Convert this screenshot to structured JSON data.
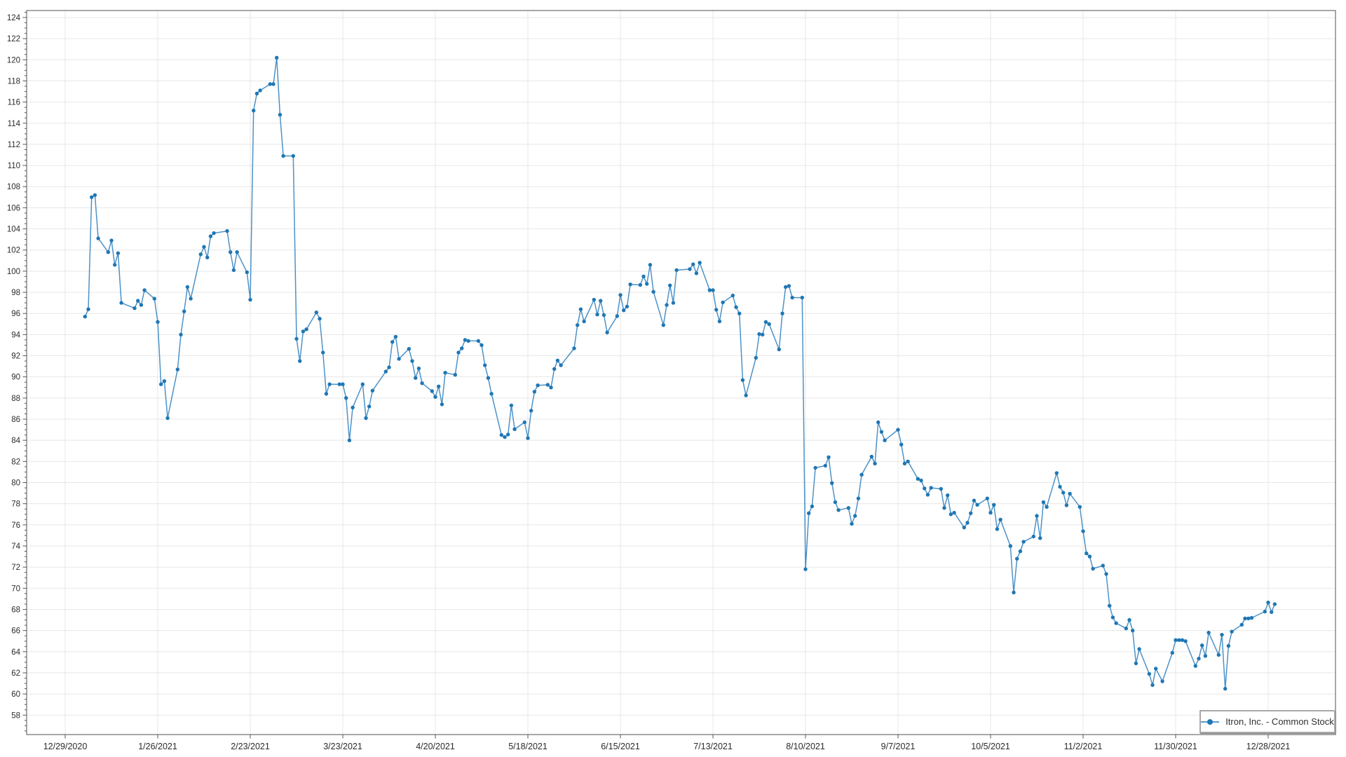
{
  "legend": {
    "label": "Itron, Inc. - Common Stock"
  },
  "axes": {
    "y_ticks": [
      58,
      60,
      62,
      64,
      66,
      68,
      70,
      72,
      74,
      76,
      78,
      80,
      82,
      84,
      86,
      88,
      90,
      92,
      94,
      96,
      98,
      100,
      102,
      104,
      106,
      108,
      110,
      112,
      114,
      116,
      118,
      120,
      122,
      124
    ],
    "y_minor_step": 0.5,
    "x_ticks": [
      "12/29/2020",
      "1/26/2021",
      "2/23/2021",
      "3/23/2021",
      "4/20/2021",
      "5/18/2021",
      "6/15/2021",
      "7/13/2021",
      "8/10/2021",
      "9/7/2021",
      "10/5/2021",
      "11/2/2021",
      "11/30/2021",
      "12/28/2021"
    ]
  },
  "colors": {
    "line": "#2e7fbe",
    "marker": "#1f77b4",
    "grid": "#e7e7e7",
    "border": "#6e6e6e",
    "tick": "#565656",
    "label": "#2b2b2b"
  },
  "chart_data": {
    "type": "line",
    "title": "",
    "xlabel": "",
    "ylabel": "",
    "series_name": "Itron, Inc. - Common Stock",
    "x_epoch": "12/29/2020",
    "ylim_labels": [
      58,
      124
    ],
    "ylim_plot": [
      56.16,
      124.66
    ],
    "legend_position": "bottom-right",
    "grid": true,
    "markers": true,
    "dates": [
      "1/4/2021",
      "1/5/2021",
      "1/6/2021",
      "1/7/2021",
      "1/8/2021",
      "1/11/2021",
      "1/12/2021",
      "1/13/2021",
      "1/14/2021",
      "1/15/2021",
      "1/19/2021",
      "1/20/2021",
      "1/21/2021",
      "1/22/2021",
      "1/25/2021",
      "1/26/2021",
      "1/27/2021",
      "1/28/2021",
      "1/29/2021",
      "2/1/2021",
      "2/2/2021",
      "2/3/2021",
      "2/4/2021",
      "2/5/2021",
      "2/8/2021",
      "2/9/2021",
      "2/10/2021",
      "2/11/2021",
      "2/12/2021",
      "2/16/2021",
      "2/17/2021",
      "2/18/2021",
      "2/19/2021",
      "2/22/2021",
      "2/23/2021",
      "2/24/2021",
      "2/25/2021",
      "2/26/2021",
      "3/1/2021",
      "3/2/2021",
      "3/3/2021",
      "3/4/2021",
      "3/5/2021",
      "3/8/2021",
      "3/9/2021",
      "3/10/2021",
      "3/11/2021",
      "3/12/2021",
      "3/15/2021",
      "3/16/2021",
      "3/17/2021",
      "3/18/2021",
      "3/19/2021",
      "3/22/2021",
      "3/23/2021",
      "3/24/2021",
      "3/25/2021",
      "3/26/2021",
      "3/29/2021",
      "3/30/2021",
      "3/31/2021",
      "4/1/2021",
      "4/5/2021",
      "4/6/2021",
      "4/7/2021",
      "4/8/2021",
      "4/9/2021",
      "4/12/2021",
      "4/13/2021",
      "4/14/2021",
      "4/15/2021",
      "4/16/2021",
      "4/19/2021",
      "4/20/2021",
      "4/21/2021",
      "4/22/2021",
      "4/23/2021",
      "4/26/2021",
      "4/27/2021",
      "4/28/2021",
      "4/29/2021",
      "4/30/2021",
      "5/3/2021",
      "5/4/2021",
      "5/5/2021",
      "5/6/2021",
      "5/7/2021",
      "5/10/2021",
      "5/11/2021",
      "5/12/2021",
      "5/13/2021",
      "5/14/2021",
      "5/17/2021",
      "5/18/2021",
      "5/19/2021",
      "5/20/2021",
      "5/21/2021",
      "5/24/2021",
      "5/25/2021",
      "5/26/2021",
      "5/27/2021",
      "5/28/2021",
      "6/1/2021",
      "6/2/2021",
      "6/3/2021",
      "6/4/2021",
      "6/7/2021",
      "6/8/2021",
      "6/9/2021",
      "6/10/2021",
      "6/11/2021",
      "6/14/2021",
      "6/15/2021",
      "6/16/2021",
      "6/17/2021",
      "6/18/2021",
      "6/21/2021",
      "6/22/2021",
      "6/23/2021",
      "6/24/2021",
      "6/25/2021",
      "6/28/2021",
      "6/29/2021",
      "6/30/2021",
      "7/1/2021",
      "7/2/2021",
      "7/6/2021",
      "7/7/2021",
      "7/8/2021",
      "7/9/2021",
      "7/12/2021",
      "7/13/2021",
      "7/14/2021",
      "7/15/2021",
      "7/16/2021",
      "7/19/2021",
      "7/20/2021",
      "7/21/2021",
      "7/22/2021",
      "7/23/2021",
      "7/26/2021",
      "7/27/2021",
      "7/28/2021",
      "7/29/2021",
      "7/30/2021",
      "8/2/2021",
      "8/3/2021",
      "8/4/2021",
      "8/5/2021",
      "8/6/2021",
      "8/9/2021",
      "8/10/2021",
      "8/11/2021",
      "8/12/2021",
      "8/13/2021",
      "8/16/2021",
      "8/17/2021",
      "8/18/2021",
      "8/19/2021",
      "8/20/2021",
      "8/23/2021",
      "8/24/2021",
      "8/25/2021",
      "8/26/2021",
      "8/27/2021",
      "8/30/2021",
      "8/31/2021",
      "9/1/2021",
      "9/2/2021",
      "9/3/2021",
      "9/7/2021",
      "9/8/2021",
      "9/9/2021",
      "9/10/2021",
      "9/13/2021",
      "9/14/2021",
      "9/15/2021",
      "9/16/2021",
      "9/17/2021",
      "9/20/2021",
      "9/21/2021",
      "9/22/2021",
      "9/23/2021",
      "9/24/2021",
      "9/27/2021",
      "9/28/2021",
      "9/29/2021",
      "9/30/2021",
      "10/1/2021",
      "10/4/2021",
      "10/5/2021",
      "10/6/2021",
      "10/7/2021",
      "10/8/2021",
      "10/11/2021",
      "10/12/2021",
      "10/13/2021",
      "10/14/2021",
      "10/15/2021",
      "10/18/2021",
      "10/19/2021",
      "10/20/2021",
      "10/21/2021",
      "10/22/2021",
      "10/25/2021",
      "10/26/2021",
      "10/27/2021",
      "10/28/2021",
      "10/29/2021",
      "11/1/2021",
      "11/2/2021",
      "11/3/2021",
      "11/4/2021",
      "11/5/2021",
      "11/8/2021",
      "11/9/2021",
      "11/10/2021",
      "11/11/2021",
      "11/12/2021",
      "11/15/2021",
      "11/16/2021",
      "11/17/2021",
      "11/18/2021",
      "11/19/2021",
      "11/22/2021",
      "11/23/2021",
      "11/24/2021",
      "11/26/2021",
      "11/29/2021",
      "11/30/2021",
      "12/1/2021",
      "12/2/2021",
      "12/3/2021",
      "12/6/2021",
      "12/7/2021",
      "12/8/2021",
      "12/9/2021",
      "12/10/2021",
      "12/13/2021",
      "12/14/2021",
      "12/15/2021",
      "12/16/2021",
      "12/17/2021",
      "12/20/2021",
      "12/21/2021",
      "12/22/2021",
      "12/23/2021",
      "12/27/2021",
      "12/28/2021",
      "12/29/2021",
      "12/30/2021"
    ],
    "closes": [
      95.7,
      96.4,
      107.0,
      107.2,
      103.1,
      101.8,
      102.9,
      100.6,
      101.7,
      97.0,
      96.5,
      97.2,
      96.8,
      98.2,
      97.4,
      95.2,
      89.3,
      89.6,
      86.1,
      90.7,
      94.0,
      96.2,
      98.5,
      97.4,
      101.6,
      102.3,
      101.3,
      103.3,
      103.6,
      103.8,
      101.8,
      100.1,
      101.8,
      99.9,
      97.3,
      115.2,
      116.8,
      117.1,
      117.7,
      117.7,
      120.2,
      114.8,
      110.9,
      110.9,
      93.6,
      91.5,
      94.3,
      94.5,
      96.1,
      95.5,
      92.3,
      88.4,
      89.3,
      89.3,
      89.3,
      88.0,
      84.0,
      87.1,
      89.3,
      86.1,
      87.2,
      88.7,
      90.5,
      90.9,
      93.3,
      93.8,
      91.7,
      92.65,
      91.5,
      89.9,
      90.8,
      89.4,
      88.65,
      88.1,
      89.1,
      87.4,
      90.4,
      90.2,
      92.3,
      92.7,
      93.5,
      93.4,
      93.4,
      93.0,
      91.1,
      89.9,
      88.4,
      84.5,
      84.3,
      84.55,
      87.3,
      85.05,
      85.7,
      84.2,
      86.8,
      88.6,
      89.2,
      89.25,
      89.0,
      90.75,
      91.55,
      91.1,
      92.7,
      94.9,
      96.4,
      95.25,
      97.3,
      95.9,
      97.2,
      95.85,
      94.2,
      95.75,
      97.75,
      96.3,
      96.65,
      98.75,
      98.7,
      99.5,
      98.8,
      100.6,
      98.05,
      94.9,
      96.8,
      98.65,
      97.0,
      100.1,
      100.2,
      100.65,
      99.8,
      100.8,
      98.2,
      98.2,
      96.35,
      95.25,
      97.05,
      97.7,
      96.6,
      96.0,
      89.7,
      88.25,
      91.8,
      94.05,
      94.0,
      95.2,
      95.0,
      92.6,
      96.0,
      98.5,
      98.6,
      97.5,
      97.5,
      71.8,
      77.1,
      77.75,
      81.4,
      81.6,
      82.4,
      79.95,
      78.15,
      77.4,
      77.6,
      76.1,
      76.85,
      78.5,
      80.75,
      82.45,
      81.8,
      85.7,
      84.8,
      84.0,
      85.0,
      83.6,
      81.8,
      82.0,
      80.35,
      80.2,
      79.45,
      78.85,
      79.5,
      79.4,
      77.6,
      78.8,
      77.0,
      77.15,
      75.75,
      76.2,
      77.1,
      78.3,
      77.9,
      78.5,
      77.15,
      77.9,
      75.6,
      76.5,
      74.0,
      69.6,
      72.8,
      73.5,
      74.4,
      74.9,
      76.85,
      74.75,
      78.15,
      77.7,
      80.9,
      79.6,
      79.05,
      77.85,
      78.95,
      77.7,
      75.4,
      73.3,
      73.0,
      71.85,
      72.15,
      71.35,
      68.35,
      67.25,
      66.7,
      66.2,
      67.0,
      66.0,
      62.9,
      64.25,
      61.9,
      60.85,
      62.4,
      61.2,
      63.9,
      65.1,
      65.1,
      65.1,
      65.0,
      62.65,
      63.35,
      64.6,
      63.6,
      65.8,
      63.7,
      65.6,
      60.5,
      64.55,
      65.9,
      66.55,
      67.15,
      67.15,
      67.2,
      67.8,
      68.65,
      67.75,
      68.5
    ]
  }
}
